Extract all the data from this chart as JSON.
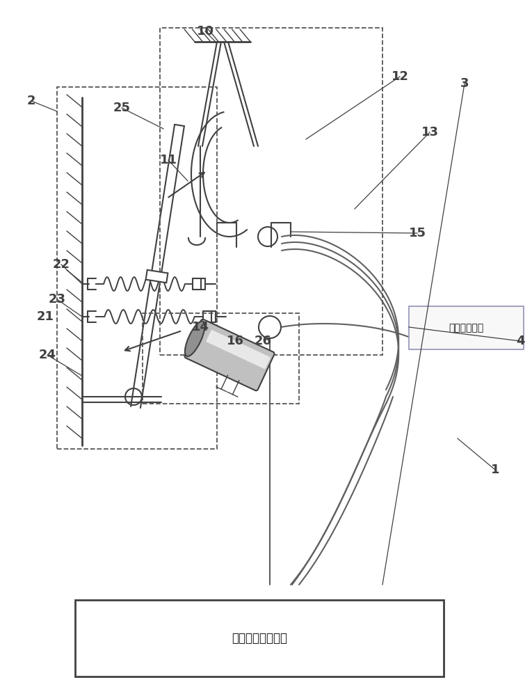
{
  "bg_color": "#ffffff",
  "line_color": "#404040",
  "gray_color": "#808080",
  "box1_label": "数据采集单元",
  "box2_label": "线圈电压控制单元",
  "fig_w": 7.65,
  "fig_h": 10.0
}
